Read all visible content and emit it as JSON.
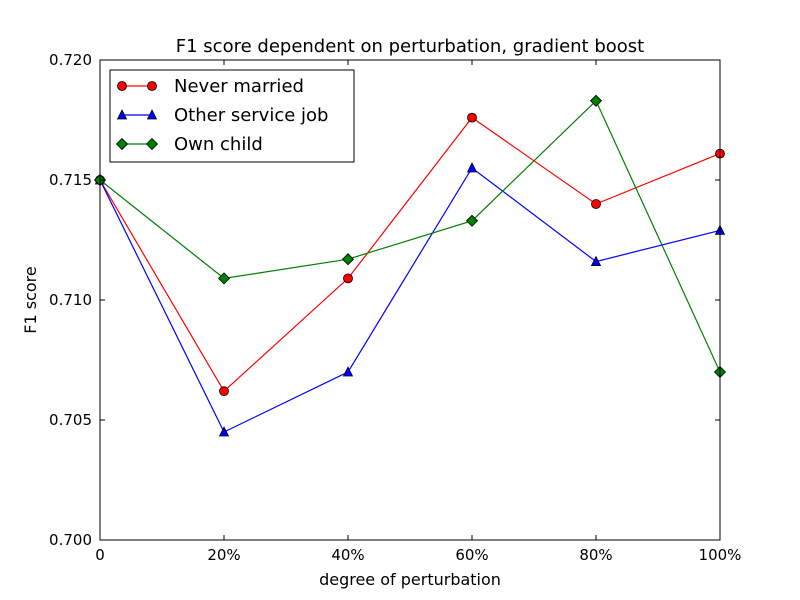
{
  "chart_data": {
    "type": "line",
    "title": "F1 score dependent on perturbation, gradient boost",
    "xlabel": "degree of perturbation",
    "ylabel": "F1 score",
    "x": [
      0,
      20,
      40,
      60,
      80,
      100
    ],
    "x_tick_labels": [
      "0",
      "20%",
      "40%",
      "60%",
      "80%",
      "100%"
    ],
    "y_tick_labels": [
      "0.700",
      "0.705",
      "0.710",
      "0.715",
      "0.720"
    ],
    "y_ticks": [
      0.7,
      0.705,
      0.71,
      0.715,
      0.72
    ],
    "xlim": [
      0,
      100
    ],
    "ylim": [
      0.7,
      0.72
    ],
    "grid": false,
    "legend_position": "upper-left",
    "series": [
      {
        "name": "Never married",
        "color": "#ff0000",
        "marker": "circle",
        "values": [
          0.715,
          0.7062,
          0.7109,
          0.7176,
          0.714,
          0.7161
        ]
      },
      {
        "name": "Other service job",
        "color": "#0000ff",
        "marker": "triangle",
        "values": [
          0.715,
          0.7045,
          0.707,
          0.7155,
          0.7116,
          0.7129
        ]
      },
      {
        "name": "Own child",
        "color": "#008000",
        "marker": "diamond",
        "values": [
          0.715,
          0.7109,
          0.7117,
          0.7133,
          0.7183,
          0.707
        ]
      }
    ]
  }
}
